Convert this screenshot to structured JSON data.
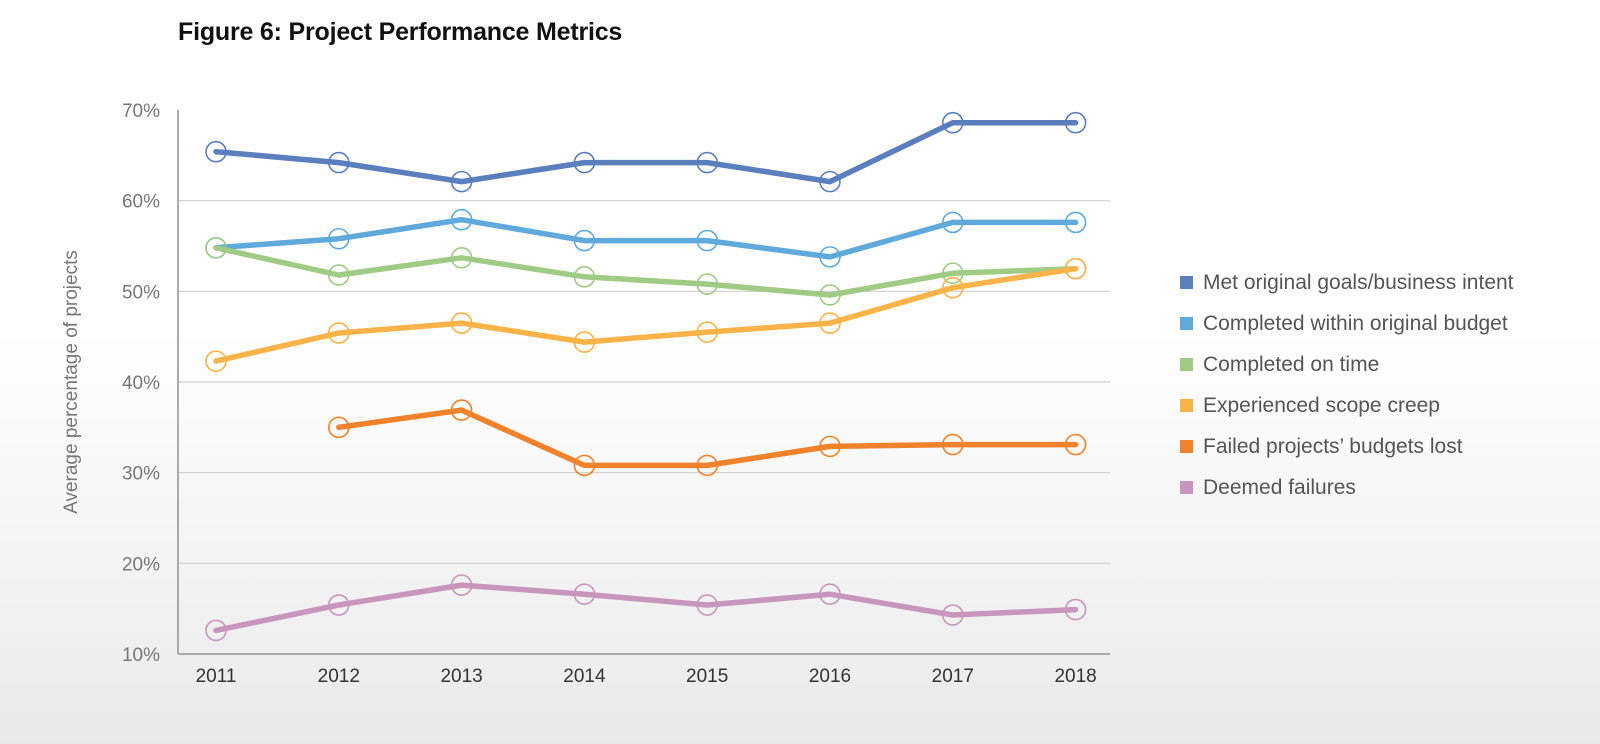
{
  "chart_data": {
    "type": "line",
    "title": "Figure 6: Project Performance Metrics",
    "xlabel": "",
    "ylabel": "Average percentage of projects",
    "ylim": [
      10,
      70
    ],
    "yticks": [
      10,
      20,
      30,
      40,
      50,
      60,
      70
    ],
    "ytick_labels": [
      "10%",
      "20%",
      "30%",
      "40%",
      "50%",
      "60%",
      "70%"
    ],
    "categories": [
      "2011",
      "2012",
      "2013",
      "2014",
      "2015",
      "2016",
      "2017",
      "2018"
    ],
    "grid": "horizontal",
    "legend_position": "right",
    "series": [
      {
        "name": "Met original goals/business intent",
        "color": "#5b7fbd",
        "values": [
          65.4,
          64.2,
          62.1,
          64.2,
          64.2,
          62.1,
          68.6,
          68.6
        ]
      },
      {
        "name": "Completed within original budget",
        "color": "#5fa9db",
        "values": [
          54.8,
          55.8,
          57.9,
          55.6,
          55.6,
          53.8,
          57.6,
          57.6
        ]
      },
      {
        "name": "Completed on time",
        "color": "#9fcb84",
        "values": [
          54.8,
          51.8,
          53.7,
          51.6,
          50.8,
          49.6,
          52.0,
          52.5
        ]
      },
      {
        "name": "Experienced scope creep",
        "color": "#f9b348",
        "values": [
          42.3,
          45.4,
          46.5,
          44.4,
          45.5,
          46.5,
          50.4,
          52.5
        ]
      },
      {
        "name": "Failed projects’ budgets lost",
        "color": "#f0822c",
        "values": [
          null,
          35.0,
          36.9,
          30.8,
          30.8,
          32.9,
          33.1,
          33.1
        ]
      },
      {
        "name": "Deemed failures",
        "color": "#c896bd",
        "values": [
          12.6,
          15.4,
          17.6,
          16.6,
          15.4,
          16.6,
          14.3,
          14.9
        ]
      }
    ]
  }
}
